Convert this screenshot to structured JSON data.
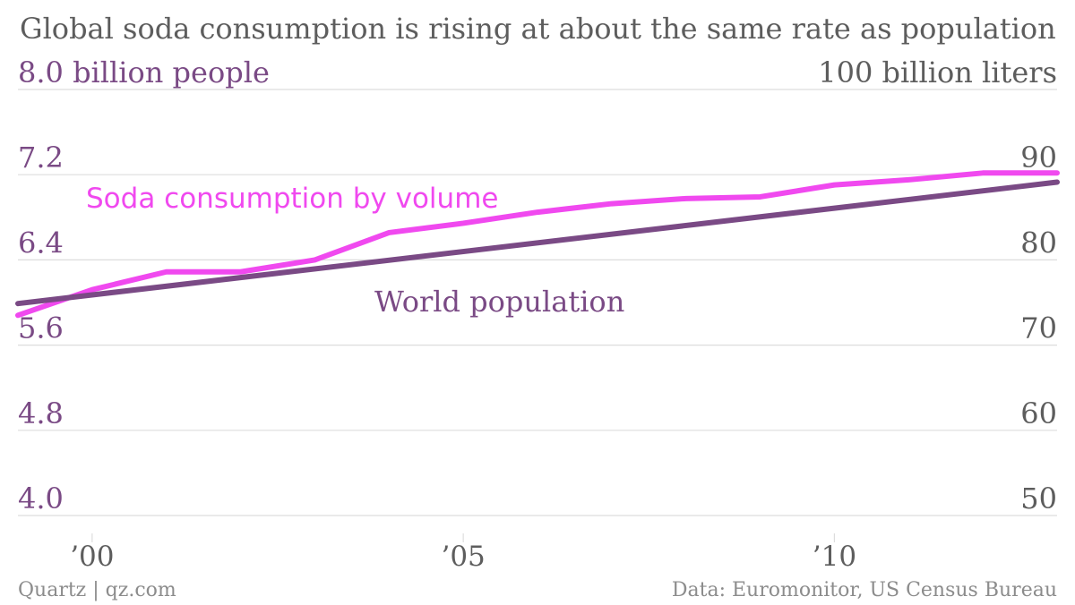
{
  "chart_data": {
    "type": "line",
    "title": "Global soda consumption is rising at about the same rate as population",
    "left_axis": {
      "unit_label": "8.0 billion people",
      "ticks": [
        "4.0",
        "4.8",
        "5.6",
        "6.4",
        "7.2"
      ],
      "tick_values": [
        4.0,
        4.8,
        5.6,
        6.4,
        7.2,
        8.0
      ],
      "range": [
        4.0,
        8.0
      ]
    },
    "right_axis": {
      "unit_label": "100 billion liters",
      "ticks": [
        "50",
        "60",
        "70",
        "80",
        "90"
      ],
      "tick_values": [
        50,
        60,
        70,
        80,
        90,
        100
      ],
      "range": [
        50,
        100
      ]
    },
    "x_axis": {
      "tick_labels": [
        "’00",
        "’05",
        "’10"
      ],
      "tick_values": [
        2000,
        2005,
        2010
      ],
      "range": [
        1999,
        2013
      ]
    },
    "grid": true,
    "series": [
      {
        "name": "Soda consumption by volume",
        "axis": "right",
        "color": "#f049ef",
        "x": [
          1999,
          2000,
          2001,
          2002,
          2003,
          2004,
          2005,
          2006,
          2007,
          2008,
          2009,
          2010,
          2011,
          2012,
          2013
        ],
        "values": [
          73.5,
          76.5,
          78.6,
          78.6,
          80.0,
          83.2,
          84.3,
          85.6,
          86.6,
          87.2,
          87.4,
          88.8,
          89.4,
          90.2,
          90.2
        ]
      },
      {
        "name": "World population",
        "axis": "left",
        "color": "#7a4a85",
        "x": [
          1999,
          2013
        ],
        "values": [
          5.99,
          7.13
        ]
      }
    ],
    "annotations": {
      "soda_label": "Soda consumption by volume",
      "population_label": "World population"
    }
  },
  "footer": {
    "source_left": "Quartz | qz.com",
    "source_right": "Data: Euromonitor, US Census Bureau"
  },
  "colors": {
    "title": "#5d5d5d",
    "left_axis": "#7a4a85",
    "right_axis": "#5d5d5d",
    "grid": "#dddddd",
    "soda": "#f049ef",
    "population": "#7a4a85",
    "footer": "#8c8c8c"
  }
}
